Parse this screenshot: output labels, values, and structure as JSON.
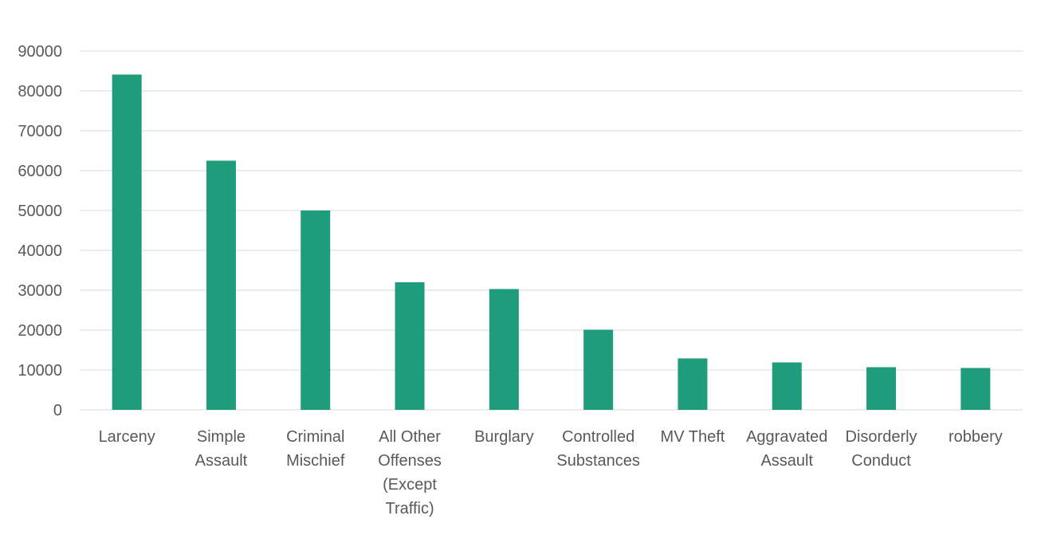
{
  "chart_data": {
    "type": "bar",
    "title": "",
    "xlabel": "",
    "ylabel": "",
    "ylim": [
      0,
      90000
    ],
    "yticks": [
      0,
      10000,
      20000,
      30000,
      40000,
      50000,
      60000,
      70000,
      80000,
      90000
    ],
    "grid": true,
    "legend": "none",
    "bar_color": "#1e9c7b",
    "categories": [
      [
        "Larceny"
      ],
      [
        "Simple",
        "Assault"
      ],
      [
        "Criminal",
        "Mischief"
      ],
      [
        "All Other",
        "Offenses",
        "(Except",
        "Traffic)"
      ],
      [
        "Burglary"
      ],
      [
        "Controlled",
        "Substances"
      ],
      [
        "MV Theft"
      ],
      [
        "Aggravated",
        "Assault"
      ],
      [
        "Disorderly",
        "Conduct"
      ],
      [
        "robbery"
      ]
    ],
    "values": [
      84100,
      62500,
      50000,
      32000,
      30300,
      20100,
      12900,
      11900,
      10700,
      10500
    ]
  }
}
